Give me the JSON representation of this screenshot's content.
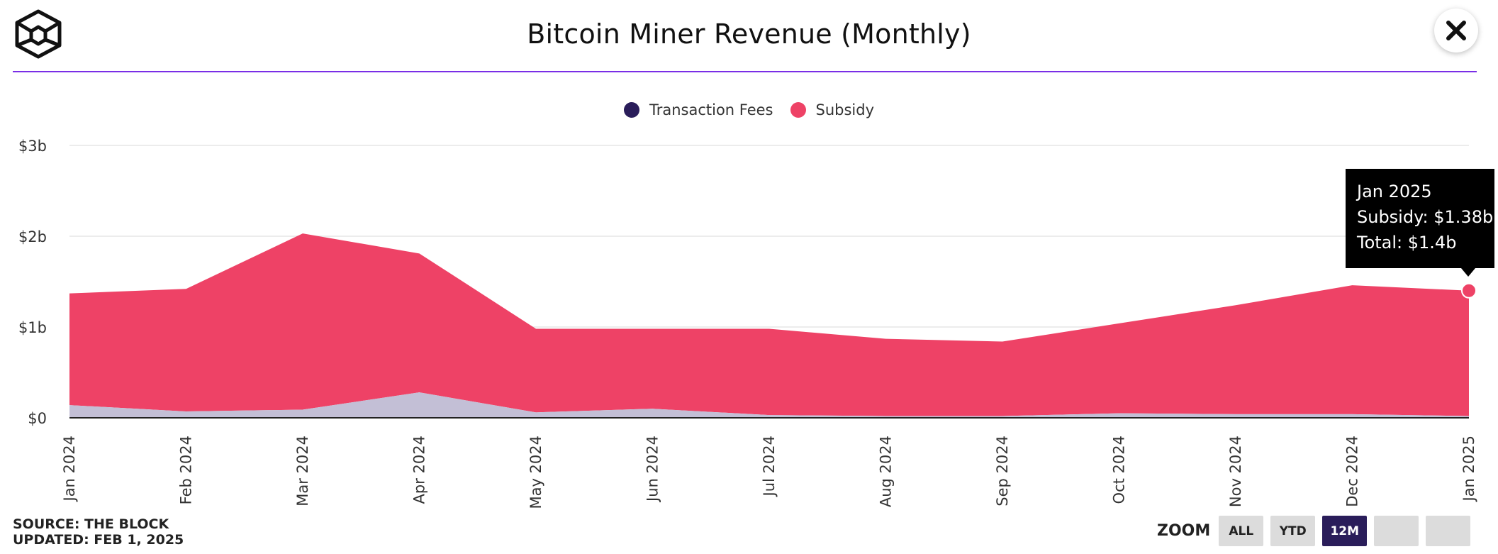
{
  "header": {
    "title": "Bitcoin Miner Revenue (Monthly)",
    "logo_icon": "the-block-cube-logo",
    "close_icon": "close-icon"
  },
  "colors": {
    "accent_line": "#7a2ee6",
    "fees": "#2a1d5a",
    "fees_fill": "#c3bfd6",
    "subsidy": "#ee4266",
    "tooltip_bg": "#000000",
    "zoom_active": "#2a1d5a"
  },
  "legend": [
    {
      "label": "Transaction Fees",
      "color": "#2a1d5a"
    },
    {
      "label": "Subsidy",
      "color": "#ee4266"
    }
  ],
  "chart_data": {
    "type": "area",
    "stacked": true,
    "title": "Bitcoin Miner Revenue (Monthly)",
    "categories": [
      "Jan 2024",
      "Feb 2024",
      "Mar 2024",
      "Apr 2024",
      "May 2024",
      "Jun 2024",
      "Jul 2024",
      "Aug 2024",
      "Sep 2024",
      "Oct 2024",
      "Nov 2024",
      "Dec 2024",
      "Jan 2025"
    ],
    "series": [
      {
        "name": "Transaction Fees",
        "color": "#c3bfd6",
        "values": [
          0.14,
          0.07,
          0.09,
          0.28,
          0.06,
          0.1,
          0.03,
          0.02,
          0.02,
          0.05,
          0.04,
          0.04,
          0.02
        ]
      },
      {
        "name": "Subsidy",
        "color": "#ee4266",
        "values": [
          1.23,
          1.35,
          1.94,
          1.53,
          0.92,
          0.88,
          0.95,
          0.85,
          0.82,
          0.99,
          1.2,
          1.42,
          1.38
        ]
      }
    ],
    "y_ticks": [
      "$0",
      "$1b",
      "$2b",
      "$3b"
    ],
    "ylim": [
      0,
      3
    ],
    "grid": true,
    "legend_position": "top-center",
    "tooltip": {
      "lines": [
        "Jan 2025",
        "Subsidy: $1.38b",
        "Total: $1.4b"
      ],
      "category_index": 12
    }
  },
  "footer": {
    "source_line1": "SOURCE: THE BLOCK",
    "source_line2": "UPDATED: FEB 1, 2025"
  },
  "zoom": {
    "label": "ZOOM",
    "buttons": [
      {
        "label": "ALL",
        "active": false
      },
      {
        "label": "YTD",
        "active": false
      },
      {
        "label": "12M",
        "active": true
      },
      {
        "label": "",
        "active": false
      },
      {
        "label": "",
        "active": false
      }
    ]
  }
}
